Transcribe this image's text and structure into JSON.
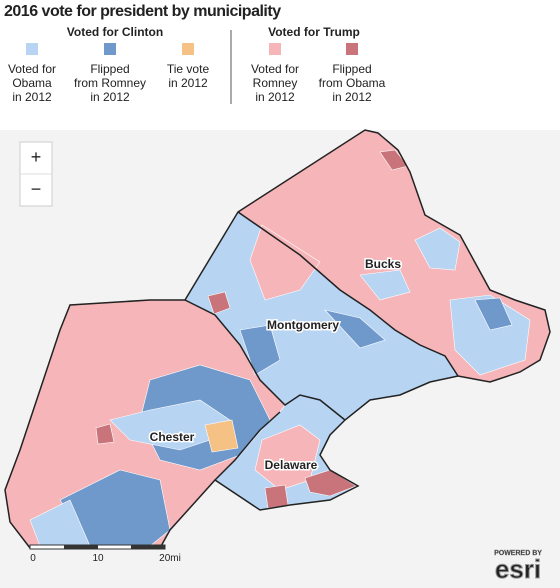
{
  "title": "2016 vote for president by municipality",
  "legend": {
    "groups": [
      {
        "title": "Voted for Clinton",
        "items": [
          {
            "label_lines": [
              "Voted for",
              "Obama",
              "in 2012"
            ],
            "color": "#b7d4f3"
          },
          {
            "label_lines": [
              "Flipped",
              "from Romney",
              "in 2012"
            ],
            "color": "#6f98cb"
          },
          {
            "label_lines": [
              "Tie vote",
              "in 2012"
            ],
            "color": "#f6c184"
          }
        ]
      },
      {
        "title": "Voted for Trump",
        "items": [
          {
            "label_lines": [
              "Voted for",
              "Romney",
              "in 2012"
            ],
            "color": "#f6b5b8"
          },
          {
            "label_lines": [
              "Flipped",
              "from Obama",
              "in 2012"
            ],
            "color": "#c9747b"
          }
        ]
      }
    ]
  },
  "map": {
    "zoom_in": "+",
    "zoom_out": "−",
    "county_labels": [
      "Bucks",
      "Montgomery",
      "Chester",
      "Delaware"
    ],
    "scale_labels": [
      "0",
      "10",
      "20mi"
    ],
    "attribution": {
      "powered_by": "POWERED BY",
      "brand": "esri"
    }
  }
}
